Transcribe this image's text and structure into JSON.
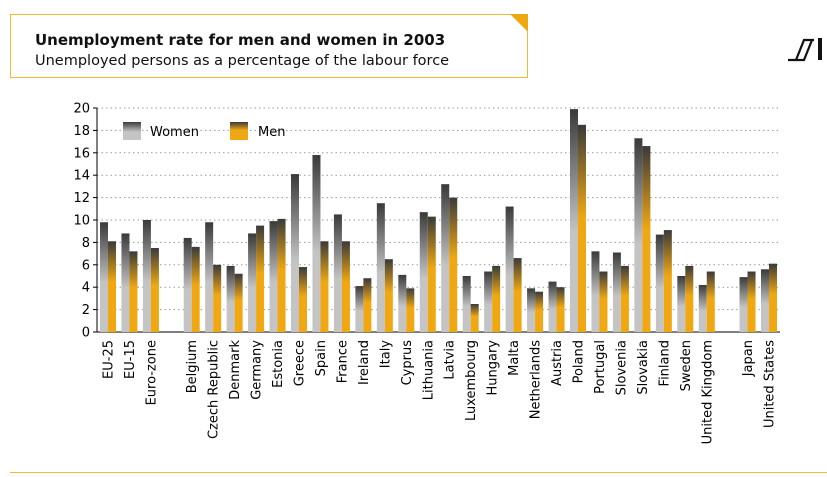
{
  "header": {
    "title": "Unemployment rate for men and women in 2003",
    "subtitle": "Unemployed persons as a percentage of the labour force"
  },
  "colors": {
    "women_top": "#3a3a3a",
    "women_bottom": "#c4c4c4",
    "men_top": "#3a3a3a",
    "men_bottom": "#f0a812",
    "accent": "#f2b83a"
  },
  "chart_data": {
    "type": "bar",
    "ylim": [
      0,
      20
    ],
    "yticks": [
      "0",
      "2",
      "4",
      "6",
      "8",
      "10",
      "12",
      "14",
      "16",
      "18",
      "20"
    ],
    "grid": true,
    "legend_position": "top-left",
    "categories": [
      "EU-25",
      "EU-15",
      "Euro-zone",
      "Belgium",
      "Czech Republic",
      "Denmark",
      "Germany",
      "Estonia",
      "Greece",
      "Spain",
      "France",
      "Ireland",
      "Italy",
      "Cyprus",
      "Lithuania",
      "Latvia",
      "Luxembourg",
      "Hungary",
      "Malta",
      "Netherlands",
      "Austria",
      "Poland",
      "Portugal",
      "Slovenia",
      "Slovakia",
      "Finland",
      "Sweden",
      "United Kingdom",
      "Japan",
      "United States"
    ],
    "series": [
      {
        "name": "Women",
        "values": [
          9.8,
          8.8,
          10.0,
          8.4,
          9.8,
          5.9,
          8.8,
          9.9,
          14.1,
          15.8,
          10.5,
          4.1,
          11.5,
          5.1,
          10.7,
          13.2,
          5.0,
          5.4,
          11.2,
          3.9,
          4.5,
          19.9,
          7.2,
          7.1,
          17.3,
          8.7,
          5.0,
          4.2,
          4.9,
          5.6
        ]
      },
      {
        "name": "Men",
        "values": [
          8.1,
          7.2,
          7.5,
          7.6,
          6.0,
          5.2,
          9.5,
          10.1,
          5.8,
          8.1,
          8.1,
          4.8,
          6.5,
          3.9,
          10.3,
          12.0,
          2.5,
          5.9,
          6.6,
          3.6,
          4.0,
          18.5,
          5.4,
          5.9,
          16.6,
          9.1,
          5.9,
          5.4,
          5.4,
          6.1
        ]
      }
    ]
  }
}
